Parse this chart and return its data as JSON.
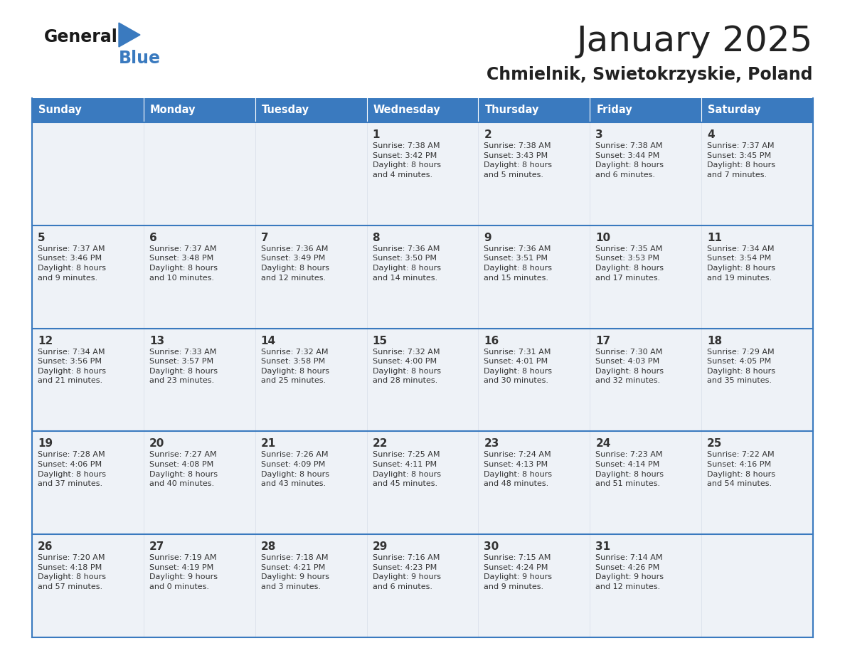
{
  "title": "January 2025",
  "subtitle": "Chmielnik, Swietokrzyskie, Poland",
  "header_bg_color": "#3a7abf",
  "header_text_color": "#ffffff",
  "cell_bg_color": "#f0f4f8",
  "divider_color": "#3a7abf",
  "text_color": "#333333",
  "days_of_week": [
    "Sunday",
    "Monday",
    "Tuesday",
    "Wednesday",
    "Thursday",
    "Friday",
    "Saturday"
  ],
  "calendar": [
    [
      {
        "day": null,
        "info": null
      },
      {
        "day": null,
        "info": null
      },
      {
        "day": null,
        "info": null
      },
      {
        "day": 1,
        "info": "Sunrise: 7:38 AM\nSunset: 3:42 PM\nDaylight: 8 hours\nand 4 minutes."
      },
      {
        "day": 2,
        "info": "Sunrise: 7:38 AM\nSunset: 3:43 PM\nDaylight: 8 hours\nand 5 minutes."
      },
      {
        "day": 3,
        "info": "Sunrise: 7:38 AM\nSunset: 3:44 PM\nDaylight: 8 hours\nand 6 minutes."
      },
      {
        "day": 4,
        "info": "Sunrise: 7:37 AM\nSunset: 3:45 PM\nDaylight: 8 hours\nand 7 minutes."
      }
    ],
    [
      {
        "day": 5,
        "info": "Sunrise: 7:37 AM\nSunset: 3:46 PM\nDaylight: 8 hours\nand 9 minutes."
      },
      {
        "day": 6,
        "info": "Sunrise: 7:37 AM\nSunset: 3:48 PM\nDaylight: 8 hours\nand 10 minutes."
      },
      {
        "day": 7,
        "info": "Sunrise: 7:36 AM\nSunset: 3:49 PM\nDaylight: 8 hours\nand 12 minutes."
      },
      {
        "day": 8,
        "info": "Sunrise: 7:36 AM\nSunset: 3:50 PM\nDaylight: 8 hours\nand 14 minutes."
      },
      {
        "day": 9,
        "info": "Sunrise: 7:36 AM\nSunset: 3:51 PM\nDaylight: 8 hours\nand 15 minutes."
      },
      {
        "day": 10,
        "info": "Sunrise: 7:35 AM\nSunset: 3:53 PM\nDaylight: 8 hours\nand 17 minutes."
      },
      {
        "day": 11,
        "info": "Sunrise: 7:34 AM\nSunset: 3:54 PM\nDaylight: 8 hours\nand 19 minutes."
      }
    ],
    [
      {
        "day": 12,
        "info": "Sunrise: 7:34 AM\nSunset: 3:56 PM\nDaylight: 8 hours\nand 21 minutes."
      },
      {
        "day": 13,
        "info": "Sunrise: 7:33 AM\nSunset: 3:57 PM\nDaylight: 8 hours\nand 23 minutes."
      },
      {
        "day": 14,
        "info": "Sunrise: 7:32 AM\nSunset: 3:58 PM\nDaylight: 8 hours\nand 25 minutes."
      },
      {
        "day": 15,
        "info": "Sunrise: 7:32 AM\nSunset: 4:00 PM\nDaylight: 8 hours\nand 28 minutes."
      },
      {
        "day": 16,
        "info": "Sunrise: 7:31 AM\nSunset: 4:01 PM\nDaylight: 8 hours\nand 30 minutes."
      },
      {
        "day": 17,
        "info": "Sunrise: 7:30 AM\nSunset: 4:03 PM\nDaylight: 8 hours\nand 32 minutes."
      },
      {
        "day": 18,
        "info": "Sunrise: 7:29 AM\nSunset: 4:05 PM\nDaylight: 8 hours\nand 35 minutes."
      }
    ],
    [
      {
        "day": 19,
        "info": "Sunrise: 7:28 AM\nSunset: 4:06 PM\nDaylight: 8 hours\nand 37 minutes."
      },
      {
        "day": 20,
        "info": "Sunrise: 7:27 AM\nSunset: 4:08 PM\nDaylight: 8 hours\nand 40 minutes."
      },
      {
        "day": 21,
        "info": "Sunrise: 7:26 AM\nSunset: 4:09 PM\nDaylight: 8 hours\nand 43 minutes."
      },
      {
        "day": 22,
        "info": "Sunrise: 7:25 AM\nSunset: 4:11 PM\nDaylight: 8 hours\nand 45 minutes."
      },
      {
        "day": 23,
        "info": "Sunrise: 7:24 AM\nSunset: 4:13 PM\nDaylight: 8 hours\nand 48 minutes."
      },
      {
        "day": 24,
        "info": "Sunrise: 7:23 AM\nSunset: 4:14 PM\nDaylight: 8 hours\nand 51 minutes."
      },
      {
        "day": 25,
        "info": "Sunrise: 7:22 AM\nSunset: 4:16 PM\nDaylight: 8 hours\nand 54 minutes."
      }
    ],
    [
      {
        "day": 26,
        "info": "Sunrise: 7:20 AM\nSunset: 4:18 PM\nDaylight: 8 hours\nand 57 minutes."
      },
      {
        "day": 27,
        "info": "Sunrise: 7:19 AM\nSunset: 4:19 PM\nDaylight: 9 hours\nand 0 minutes."
      },
      {
        "day": 28,
        "info": "Sunrise: 7:18 AM\nSunset: 4:21 PM\nDaylight: 9 hours\nand 3 minutes."
      },
      {
        "day": 29,
        "info": "Sunrise: 7:16 AM\nSunset: 4:23 PM\nDaylight: 9 hours\nand 6 minutes."
      },
      {
        "day": 30,
        "info": "Sunrise: 7:15 AM\nSunset: 4:24 PM\nDaylight: 9 hours\nand 9 minutes."
      },
      {
        "day": 31,
        "info": "Sunrise: 7:14 AM\nSunset: 4:26 PM\nDaylight: 9 hours\nand 12 minutes."
      },
      {
        "day": null,
        "info": null
      }
    ]
  ]
}
